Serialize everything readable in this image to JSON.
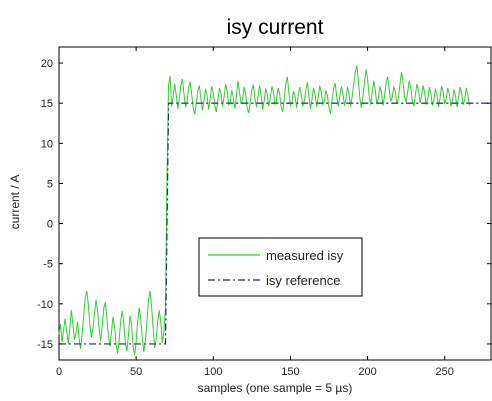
{
  "chart_data": {
    "type": "line",
    "title": "isy current",
    "xlabel": "samples (one sample = 5 µs)",
    "ylabel": "current / A",
    "xlim": [
      0,
      280
    ],
    "ylim": [
      -17,
      22
    ],
    "xticks": [
      0,
      50,
      100,
      150,
      200,
      250
    ],
    "yticks": [
      -15,
      -10,
      -5,
      0,
      5,
      10,
      15,
      20
    ],
    "grid": false,
    "legend_position": "center-right",
    "series": [
      {
        "name": "measured isy",
        "color": "#33cc33",
        "style": "solid",
        "x_start": 0,
        "x_step": 1,
        "y": [
          -13.8,
          -12.5,
          -14.8,
          -13.2,
          -11.8,
          -13.5,
          -15.0,
          -13.0,
          -10.8,
          -12.6,
          -14.5,
          -13.7,
          -12.2,
          -14.3,
          -15.6,
          -13.8,
          -11.4,
          -9.2,
          -8.4,
          -10.1,
          -12.6,
          -14.2,
          -13.0,
          -11.2,
          -9.5,
          -10.8,
          -13.1,
          -14.6,
          -12.9,
          -10.6,
          -9.8,
          -11.7,
          -14.0,
          -15.3,
          -13.6,
          -11.6,
          -12.8,
          -15.0,
          -16.2,
          -14.5,
          -12.1,
          -10.9,
          -12.4,
          -14.8,
          -15.9,
          -13.9,
          -11.5,
          -12.5,
          -15.2,
          -16.4,
          -14.7,
          -12.2,
          -10.5,
          -11.9,
          -14.3,
          -16.0,
          -14.6,
          -12.3,
          -9.6,
          -8.4,
          -10.3,
          -13.0,
          -15.5,
          -14.4,
          -12.1,
          -10.8,
          -12.4,
          -14.9,
          -13.3,
          -10.6,
          6.0,
          17.2,
          18.4,
          14.6,
          15.8,
          17.4,
          16.0,
          14.3,
          15.6,
          17.3,
          18.0,
          16.2,
          14.5,
          15.2,
          16.9,
          17.7,
          16.1,
          14.4,
          13.6,
          15.0,
          16.6,
          17.2,
          15.5,
          14.1,
          15.3,
          16.8,
          15.9,
          14.2,
          15.6,
          17.1,
          16.3,
          14.7,
          13.9,
          15.4,
          16.9,
          16.2,
          14.6,
          15.8,
          17.4,
          16.5,
          14.8,
          15.1,
          16.6,
          15.7,
          14.3,
          15.9,
          17.8,
          16.4,
          14.9,
          15.5,
          17.0,
          16.1,
          14.4,
          13.8,
          15.2,
          16.7,
          17.3,
          15.6,
          14.5,
          15.9,
          17.2,
          16.0,
          14.2,
          15.3,
          16.8,
          16.1,
          14.6,
          15.7,
          17.1,
          16.4,
          14.8,
          15.4,
          16.9,
          16.2,
          14.5,
          13.9,
          15.6,
          17.4,
          18.3,
          16.3,
          14.7,
          15.1,
          16.5,
          15.8,
          14.4,
          15.9,
          17.0,
          16.2,
          14.6,
          15.3,
          16.7,
          17.6,
          15.9,
          14.3,
          15.5,
          16.9,
          16.1,
          14.5,
          15.7,
          17.2,
          16.4,
          14.8,
          15.2,
          16.6,
          15.9,
          14.4,
          13.7,
          15.4,
          16.8,
          17.5,
          15.8,
          14.6,
          15.9,
          17.1,
          16.3,
          14.7,
          15.5,
          17.0,
          16.2,
          14.6,
          15.8,
          17.3,
          18.8,
          19.7,
          17.9,
          15.6,
          14.4,
          15.9,
          17.6,
          19.2,
          18.1,
          15.9,
          14.8,
          16.3,
          17.8,
          16.6,
          14.9,
          15.6,
          17.1,
          16.4,
          14.7,
          15.9,
          17.5,
          18.3,
          16.8,
          15.2,
          15.8,
          17.0,
          16.5,
          14.9,
          15.7,
          17.3,
          18.9,
          17.6,
          15.8,
          15.1,
          16.4,
          17.8,
          16.9,
          15.3,
          14.6,
          16.1,
          17.4,
          16.6,
          15.0,
          15.9,
          17.2,
          16.3,
          14.8,
          15.5,
          17.0,
          16.2,
          14.7,
          15.4,
          16.8,
          16.0,
          14.5,
          15.7,
          17.1,
          16.4,
          14.9,
          15.6,
          16.9,
          16.1,
          14.6,
          15.3,
          16.7,
          15.9,
          14.5,
          15.8,
          17.0,
          16.2,
          14.8,
          15.5,
          16.9,
          16.0,
          14.7
        ]
      },
      {
        "name": "isy reference",
        "color": "#1f2a6b",
        "style": "dash-dot",
        "x": [
          0,
          69,
          70,
          71,
          280
        ],
        "y": [
          -15,
          -15,
          0,
          15,
          15
        ]
      }
    ]
  }
}
